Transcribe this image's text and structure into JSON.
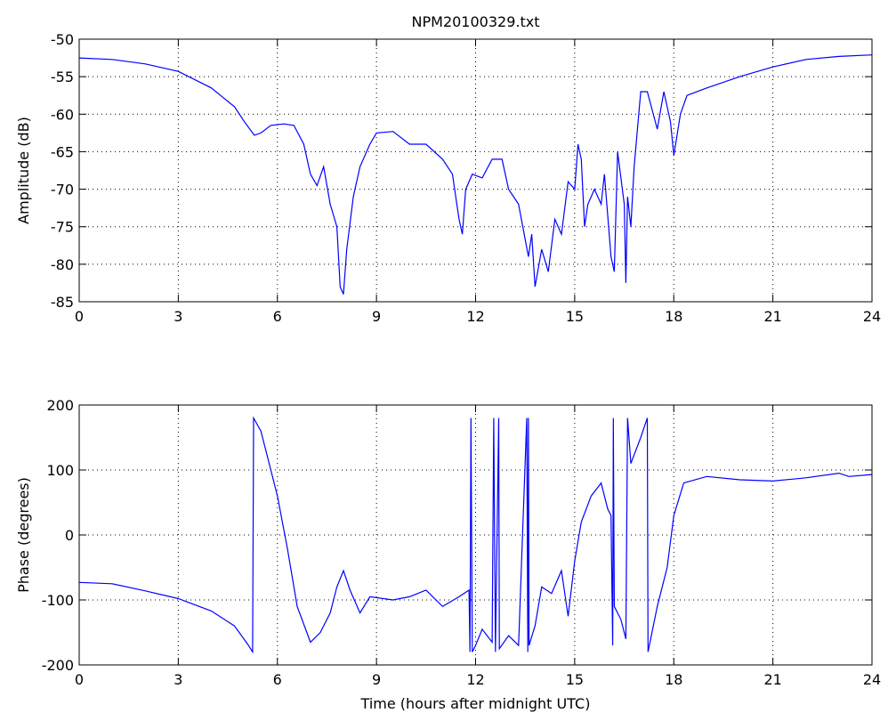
{
  "chart_data": [
    {
      "type": "line",
      "title": "NPM20100329.txt",
      "y_label": "Amplitude (dB)",
      "xlim": [
        0,
        24
      ],
      "xticks": [
        0,
        3,
        6,
        9,
        12,
        15,
        18,
        21,
        24
      ],
      "ylim": [
        -85,
        -50
      ],
      "yticks": [
        -85,
        -80,
        -75,
        -70,
        -65,
        -60,
        -55,
        -50
      ],
      "grid": true,
      "series": [
        {
          "name": "Amplitude",
          "color": "#0000ff",
          "x": [
            0,
            1,
            2,
            3,
            4,
            4.7,
            5.0,
            5.3,
            5.5,
            5.8,
            6.2,
            6.5,
            6.8,
            7.0,
            7.2,
            7.4,
            7.6,
            7.8,
            7.9,
            8.0,
            8.1,
            8.3,
            8.5,
            8.8,
            9.0,
            9.5,
            10.0,
            10.5,
            11.0,
            11.3,
            11.5,
            11.6,
            11.7,
            11.9,
            12.2,
            12.5,
            12.8,
            13.0,
            13.3,
            13.6,
            13.7,
            13.8,
            14.0,
            14.2,
            14.4,
            14.6,
            14.8,
            15.0,
            15.1,
            15.2,
            15.3,
            15.4,
            15.6,
            15.8,
            15.9,
            16.1,
            16.2,
            16.3,
            16.5,
            16.55,
            16.6,
            16.7,
            16.8,
            17.0,
            17.2,
            17.5,
            17.7,
            17.9,
            18.0,
            18.2,
            18.4,
            19,
            20,
            21,
            22,
            23,
            24
          ],
          "values": [
            -52.5,
            -52.7,
            -53.3,
            -54.3,
            -56.5,
            -59,
            -61,
            -62.8,
            -62.5,
            -61.5,
            -61.3,
            -61.5,
            -64,
            -68,
            -69.5,
            -67,
            -72,
            -75,
            -83,
            -84,
            -78,
            -71,
            -67,
            -64,
            -62.5,
            -62.3,
            -64,
            -64,
            -66,
            -68,
            -74,
            -76,
            -70,
            -68,
            -68.5,
            -66,
            -66,
            -70,
            -72,
            -79,
            -76,
            -83,
            -78,
            -81,
            -74,
            -76,
            -69,
            -70,
            -64,
            -66,
            -75,
            -72,
            -70,
            -72,
            -68,
            -79,
            -81,
            -65,
            -72,
            -82.5,
            -71,
            -75,
            -67,
            -57,
            -57,
            -62,
            -57,
            -61,
            -65.5,
            -60,
            -57.5,
            -56.5,
            -55,
            -53.7,
            -52.7,
            -52.3,
            -52.1
          ]
        }
      ]
    },
    {
      "type": "line",
      "x_label": "Time (hours after midnight UTC)",
      "y_label": "Phase (degrees)",
      "xlim": [
        0,
        24
      ],
      "xticks": [
        0,
        3,
        6,
        9,
        12,
        15,
        18,
        21,
        24
      ],
      "ylim": [
        -200,
        200
      ],
      "yticks": [
        -200,
        -100,
        0,
        100,
        200
      ],
      "grid": true,
      "series": [
        {
          "name": "Phase",
          "color": "#0000ff",
          "x": [
            0,
            1,
            2,
            3,
            4,
            4.7,
            5.1,
            5.25,
            5.28,
            5.5,
            6.0,
            6.3,
            6.6,
            7.0,
            7.3,
            7.6,
            7.8,
            8.0,
            8.2,
            8.5,
            8.8,
            9.5,
            10.0,
            10.5,
            11.0,
            11.5,
            11.8,
            11.83,
            11.86,
            11.9,
            12.0,
            12.2,
            12.5,
            12.55,
            12.6,
            12.7,
            12.72,
            13.0,
            13.3,
            13.55,
            13.58,
            13.6,
            13.62,
            13.8,
            14.0,
            14.3,
            14.6,
            14.8,
            15.0,
            15.2,
            15.5,
            15.8,
            16.0,
            16.1,
            16.15,
            16.17,
            16.2,
            16.4,
            16.55,
            16.6,
            16.7,
            17.0,
            17.2,
            17.22,
            17.5,
            17.8,
            18.0,
            18.3,
            19,
            20,
            21,
            22,
            23,
            23.3,
            24
          ],
          "values": [
            -73,
            -75,
            -86,
            -98,
            -117,
            -140,
            -168,
            -180,
            180,
            160,
            60,
            -20,
            -110,
            -165,
            -150,
            -120,
            -80,
            -55,
            -85,
            -120,
            -95,
            -100,
            -95,
            -85,
            -110,
            -95,
            -85,
            -180,
            180,
            -180,
            -170,
            -145,
            -165,
            180,
            -180,
            180,
            -175,
            -155,
            -170,
            180,
            -180,
            180,
            -170,
            -140,
            -80,
            -90,
            -55,
            -125,
            -40,
            20,
            60,
            80,
            40,
            30,
            -170,
            180,
            -110,
            -130,
            -160,
            180,
            110,
            150,
            180,
            -180,
            -110,
            -50,
            30,
            80,
            90,
            85,
            83,
            88,
            95,
            90,
            93
          ]
        }
      ]
    }
  ]
}
